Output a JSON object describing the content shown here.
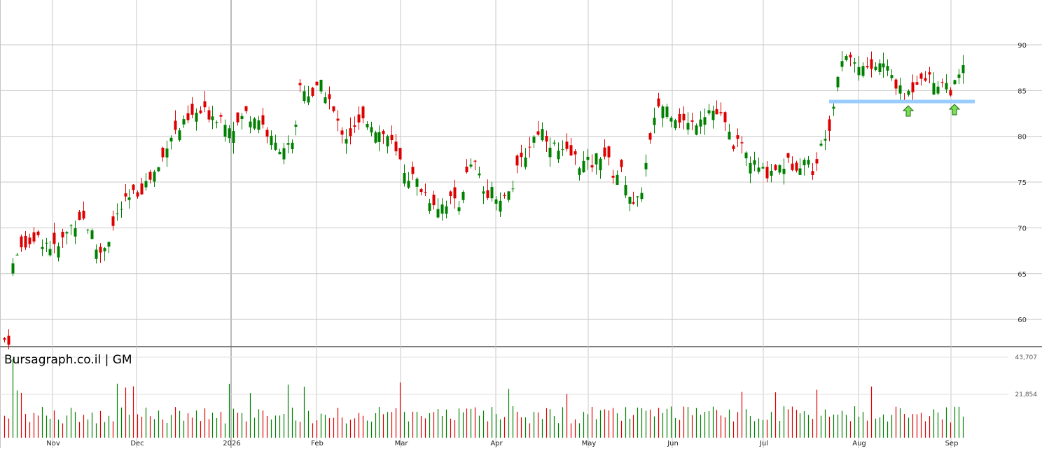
{
  "chart_data": {
    "type": "candlestick",
    "brand_label": "Bursagraph.co.il | GM",
    "price_axis": {
      "ticks": [
        90,
        85,
        80,
        75,
        70,
        65,
        60
      ],
      "range": [
        57,
        93
      ]
    },
    "volume_axis": {
      "ticks": [
        "43,707",
        "21,854"
      ],
      "max": 43707
    },
    "x_months": [
      "Nov",
      "Dec",
      "2026",
      "Feb",
      "Mar",
      "Apr",
      "May",
      "Jun",
      "Jul",
      "Aug",
      "Sep"
    ],
    "grid": true,
    "support_line": {
      "value": 83.8
    },
    "markers": [
      {
        "type": "up-arrow",
        "near_value": 83.5
      },
      {
        "type": "up-arrow",
        "near_value": 83.5
      }
    ],
    "colors": {
      "up": "#008000",
      "down": "#dd0000",
      "support": "#99ccff",
      "marker": "#7cdd55",
      "grid": "#c8c8c8"
    }
  }
}
